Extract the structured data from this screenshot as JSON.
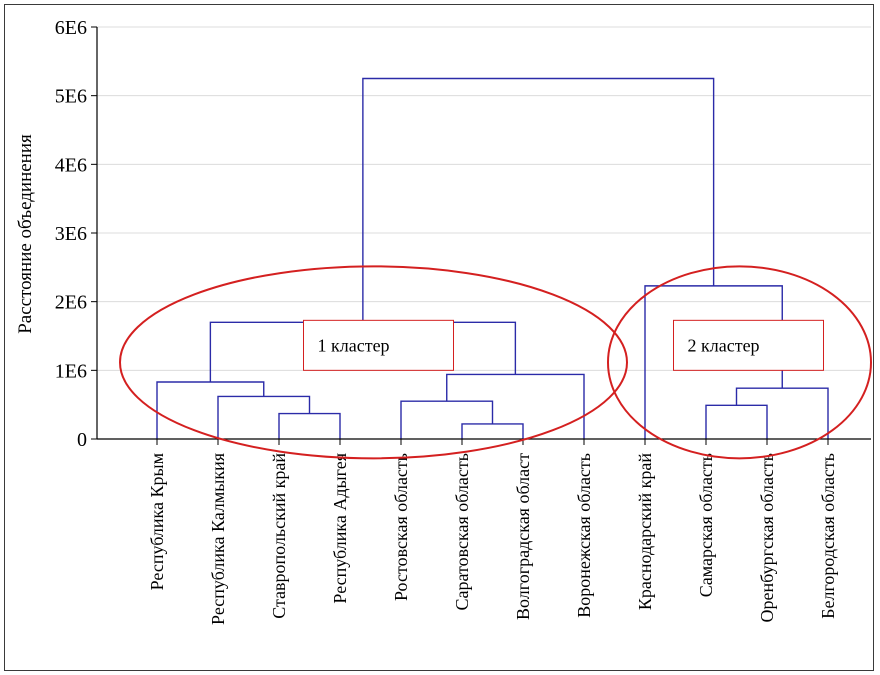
{
  "chart_data": {
    "type": "dendrogram",
    "ylabel": "Расстояние объединения",
    "ylim": [
      0,
      6000000
    ],
    "yticks": [
      {
        "value": 0,
        "label": "0"
      },
      {
        "value": 1000000,
        "label": "1E6"
      },
      {
        "value": 2000000,
        "label": "2E6"
      },
      {
        "value": 3000000,
        "label": "3E6"
      },
      {
        "value": 4000000,
        "label": "4E6"
      },
      {
        "value": 5000000,
        "label": "5E6"
      },
      {
        "value": 6000000,
        "label": "6E6"
      }
    ],
    "grid": true,
    "leaves": [
      "Республика Крым",
      "Республика Калмыкия",
      "Ставропольский край",
      "Республика Адыгея",
      "Ростовская область",
      "Саратовская область",
      "Волгоградская област",
      "Воронежская область",
      "Краснодарский край",
      "Самарская область",
      "Оренбургская область",
      "Белгородская область"
    ],
    "merges": [
      {
        "left": "L2",
        "right": "L3",
        "height": 370000
      },
      {
        "left": "L1",
        "right": "M0",
        "height": 620000
      },
      {
        "left": "L0",
        "right": "M1",
        "height": 830000
      },
      {
        "left": "L5",
        "right": "L6",
        "height": 220000
      },
      {
        "left": "L4",
        "right": "M3",
        "height": 550000
      },
      {
        "left": "M4",
        "right": "L7",
        "height": 940000
      },
      {
        "left": "M2",
        "right": "M5",
        "height": 1700000
      },
      {
        "left": "L9",
        "right": "L10",
        "height": 490000
      },
      {
        "left": "M7",
        "right": "L11",
        "height": 740000
      },
      {
        "left": "L8",
        "right": "M8",
        "height": 2230000
      },
      {
        "left": "M6",
        "right": "M9",
        "height": 5250000
      }
    ],
    "annotations": [
      {
        "label": "1 кластер",
        "leaves": [
          0,
          7
        ],
        "center": 1000000
      },
      {
        "label": "2 кластер",
        "leaves": [
          8,
          11
        ],
        "center": 1000000
      }
    ],
    "colors": {
      "links": "#2b2ba8",
      "ellipse": "#d42020",
      "box": "#d42020",
      "grid": "#dcdcdc"
    }
  }
}
